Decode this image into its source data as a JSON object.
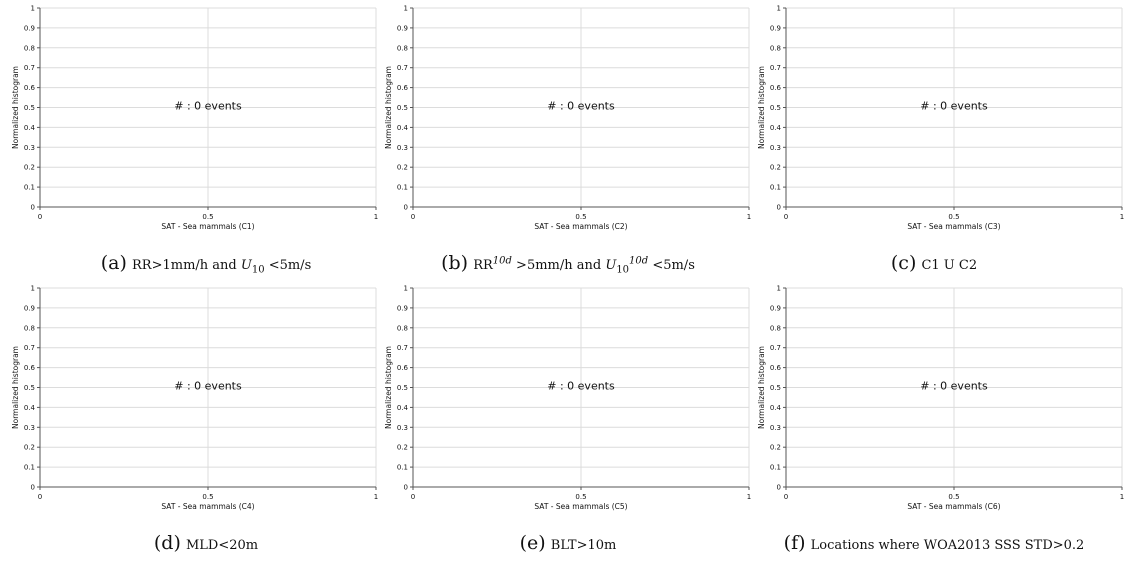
{
  "chart_data": [
    {
      "type": "bar",
      "xlabel": "SAT - Sea mammals (C1)",
      "ylabel": "Normalized histogram",
      "annotation": "# : 0 events",
      "xlim": [
        0,
        1
      ],
      "ylim": [
        0,
        1
      ],
      "x_ticks": [
        "0",
        "0.5",
        "1"
      ],
      "y_ticks": [
        "0",
        "0.1",
        "0.2",
        "0.3",
        "0.4",
        "0.5",
        "0.6",
        "0.7",
        "0.8",
        "0.9",
        "1"
      ],
      "grid": true,
      "values": [],
      "caption": {
        "letter": "(a)",
        "text": "RR>1mm/h and U10 <5m/s"
      }
    },
    {
      "type": "bar",
      "xlabel": "SAT - Sea mammals (C2)",
      "ylabel": "Normalized histogram",
      "annotation": "# : 0 events",
      "xlim": [
        0,
        1
      ],
      "ylim": [
        0,
        1
      ],
      "x_ticks": [
        "0",
        "0.5",
        "1"
      ],
      "y_ticks": [
        "0",
        "0.1",
        "0.2",
        "0.3",
        "0.4",
        "0.5",
        "0.6",
        "0.7",
        "0.8",
        "0.9",
        "1"
      ],
      "grid": true,
      "values": [],
      "caption": {
        "letter": "(b)",
        "text": "RR10d >5mm/h and U10d10 <5m/s"
      }
    },
    {
      "type": "bar",
      "xlabel": "SAT - Sea mammals (C3)",
      "ylabel": "Normalized histogram",
      "annotation": "# : 0 events",
      "xlim": [
        0,
        1
      ],
      "ylim": [
        0,
        1
      ],
      "x_ticks": [
        "0",
        "0.5",
        "1"
      ],
      "y_ticks": [
        "0",
        "0.1",
        "0.2",
        "0.3",
        "0.4",
        "0.5",
        "0.6",
        "0.7",
        "0.8",
        "0.9",
        "1"
      ],
      "grid": true,
      "values": [],
      "caption": {
        "letter": "(c)",
        "text": "C1 U C2"
      }
    },
    {
      "type": "bar",
      "xlabel": "SAT - Sea mammals (C4)",
      "ylabel": "Normalized histogram",
      "annotation": "# : 0 events",
      "xlim": [
        0,
        1
      ],
      "ylim": [
        0,
        1
      ],
      "x_ticks": [
        "0",
        "0.5",
        "1"
      ],
      "y_ticks": [
        "0",
        "0.1",
        "0.2",
        "0.3",
        "0.4",
        "0.5",
        "0.6",
        "0.7",
        "0.8",
        "0.9",
        "1"
      ],
      "grid": true,
      "values": [],
      "caption": {
        "letter": "(d)",
        "text": "MLD<20m"
      }
    },
    {
      "type": "bar",
      "xlabel": "SAT - Sea mammals (C5)",
      "ylabel": "Normalized histogram",
      "annotation": "# : 0 events",
      "xlim": [
        0,
        1
      ],
      "ylim": [
        0,
        1
      ],
      "x_ticks": [
        "0",
        "0.5",
        "1"
      ],
      "y_ticks": [
        "0",
        "0.1",
        "0.2",
        "0.3",
        "0.4",
        "0.5",
        "0.6",
        "0.7",
        "0.8",
        "0.9",
        "1"
      ],
      "grid": true,
      "values": [],
      "caption": {
        "letter": "(e)",
        "text": "BLT>10m"
      }
    },
    {
      "type": "bar",
      "xlabel": "SAT - Sea mammals (C6)",
      "ylabel": "Normalized histogram",
      "annotation": "# : 0 events",
      "xlim": [
        0,
        1
      ],
      "ylim": [
        0,
        1
      ],
      "x_ticks": [
        "0",
        "0.5",
        "1"
      ],
      "y_ticks": [
        "0",
        "0.1",
        "0.2",
        "0.3",
        "0.4",
        "0.5",
        "0.6",
        "0.7",
        "0.8",
        "0.9",
        "1"
      ],
      "grid": true,
      "values": [],
      "caption": {
        "letter": "(f)",
        "text": "Locations where WOA2013 SSS STD>0.2"
      }
    }
  ],
  "colors": {
    "grid": "#dcdcdc",
    "axis": "#555555",
    "text": "#111111"
  }
}
